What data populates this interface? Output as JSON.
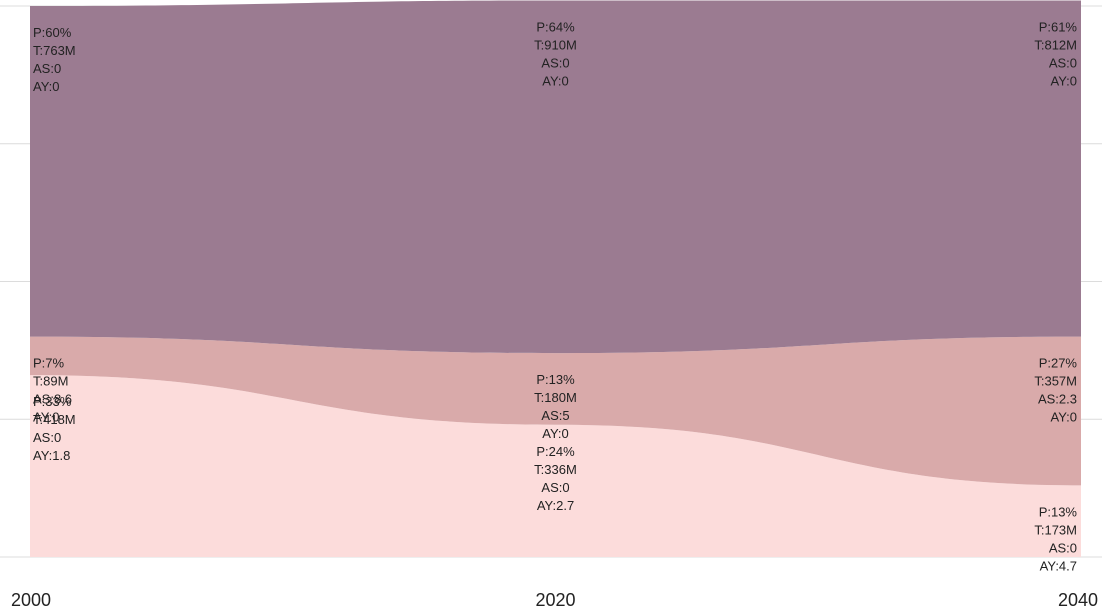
{
  "chart_data": {
    "type": "area",
    "stacking": "percent",
    "x": [
      "2000",
      "2020",
      "2040"
    ],
    "grid": true,
    "colors": [
      "#fcdcdb",
      "#d9aaaa",
      "#9b7b91"
    ],
    "series": [
      {
        "values": [
          33,
          24,
          13
        ],
        "labels": [
          [
            "P:33%",
            "T:418M",
            "AS:0",
            "AY:1.8"
          ],
          [
            "P:24%",
            "T:336M",
            "AS:0",
            "AY:2.7"
          ],
          [
            "P:13%",
            "T:173M",
            "AS:0",
            "AY:4.7"
          ]
        ]
      },
      {
        "values": [
          7,
          13,
          27
        ],
        "labels": [
          [
            "P:7%",
            "T:89M",
            "AS:8.6",
            "AY:0"
          ],
          [
            "P:13%",
            "T:180M",
            "AS:5",
            "AY:0"
          ],
          [
            "P:27%",
            "T:357M",
            "AS:2.3",
            "AY:0"
          ]
        ]
      },
      {
        "values": [
          60,
          64,
          61
        ],
        "labels": [
          [
            "P:60%",
            "T:763M",
            "AS:0",
            "AY:0"
          ],
          [
            "P:64%",
            "T:910M",
            "AS:0",
            "AY:0"
          ],
          [
            "P:61%",
            "T:812M",
            "AS:0",
            "AY:0"
          ]
        ]
      }
    ]
  }
}
